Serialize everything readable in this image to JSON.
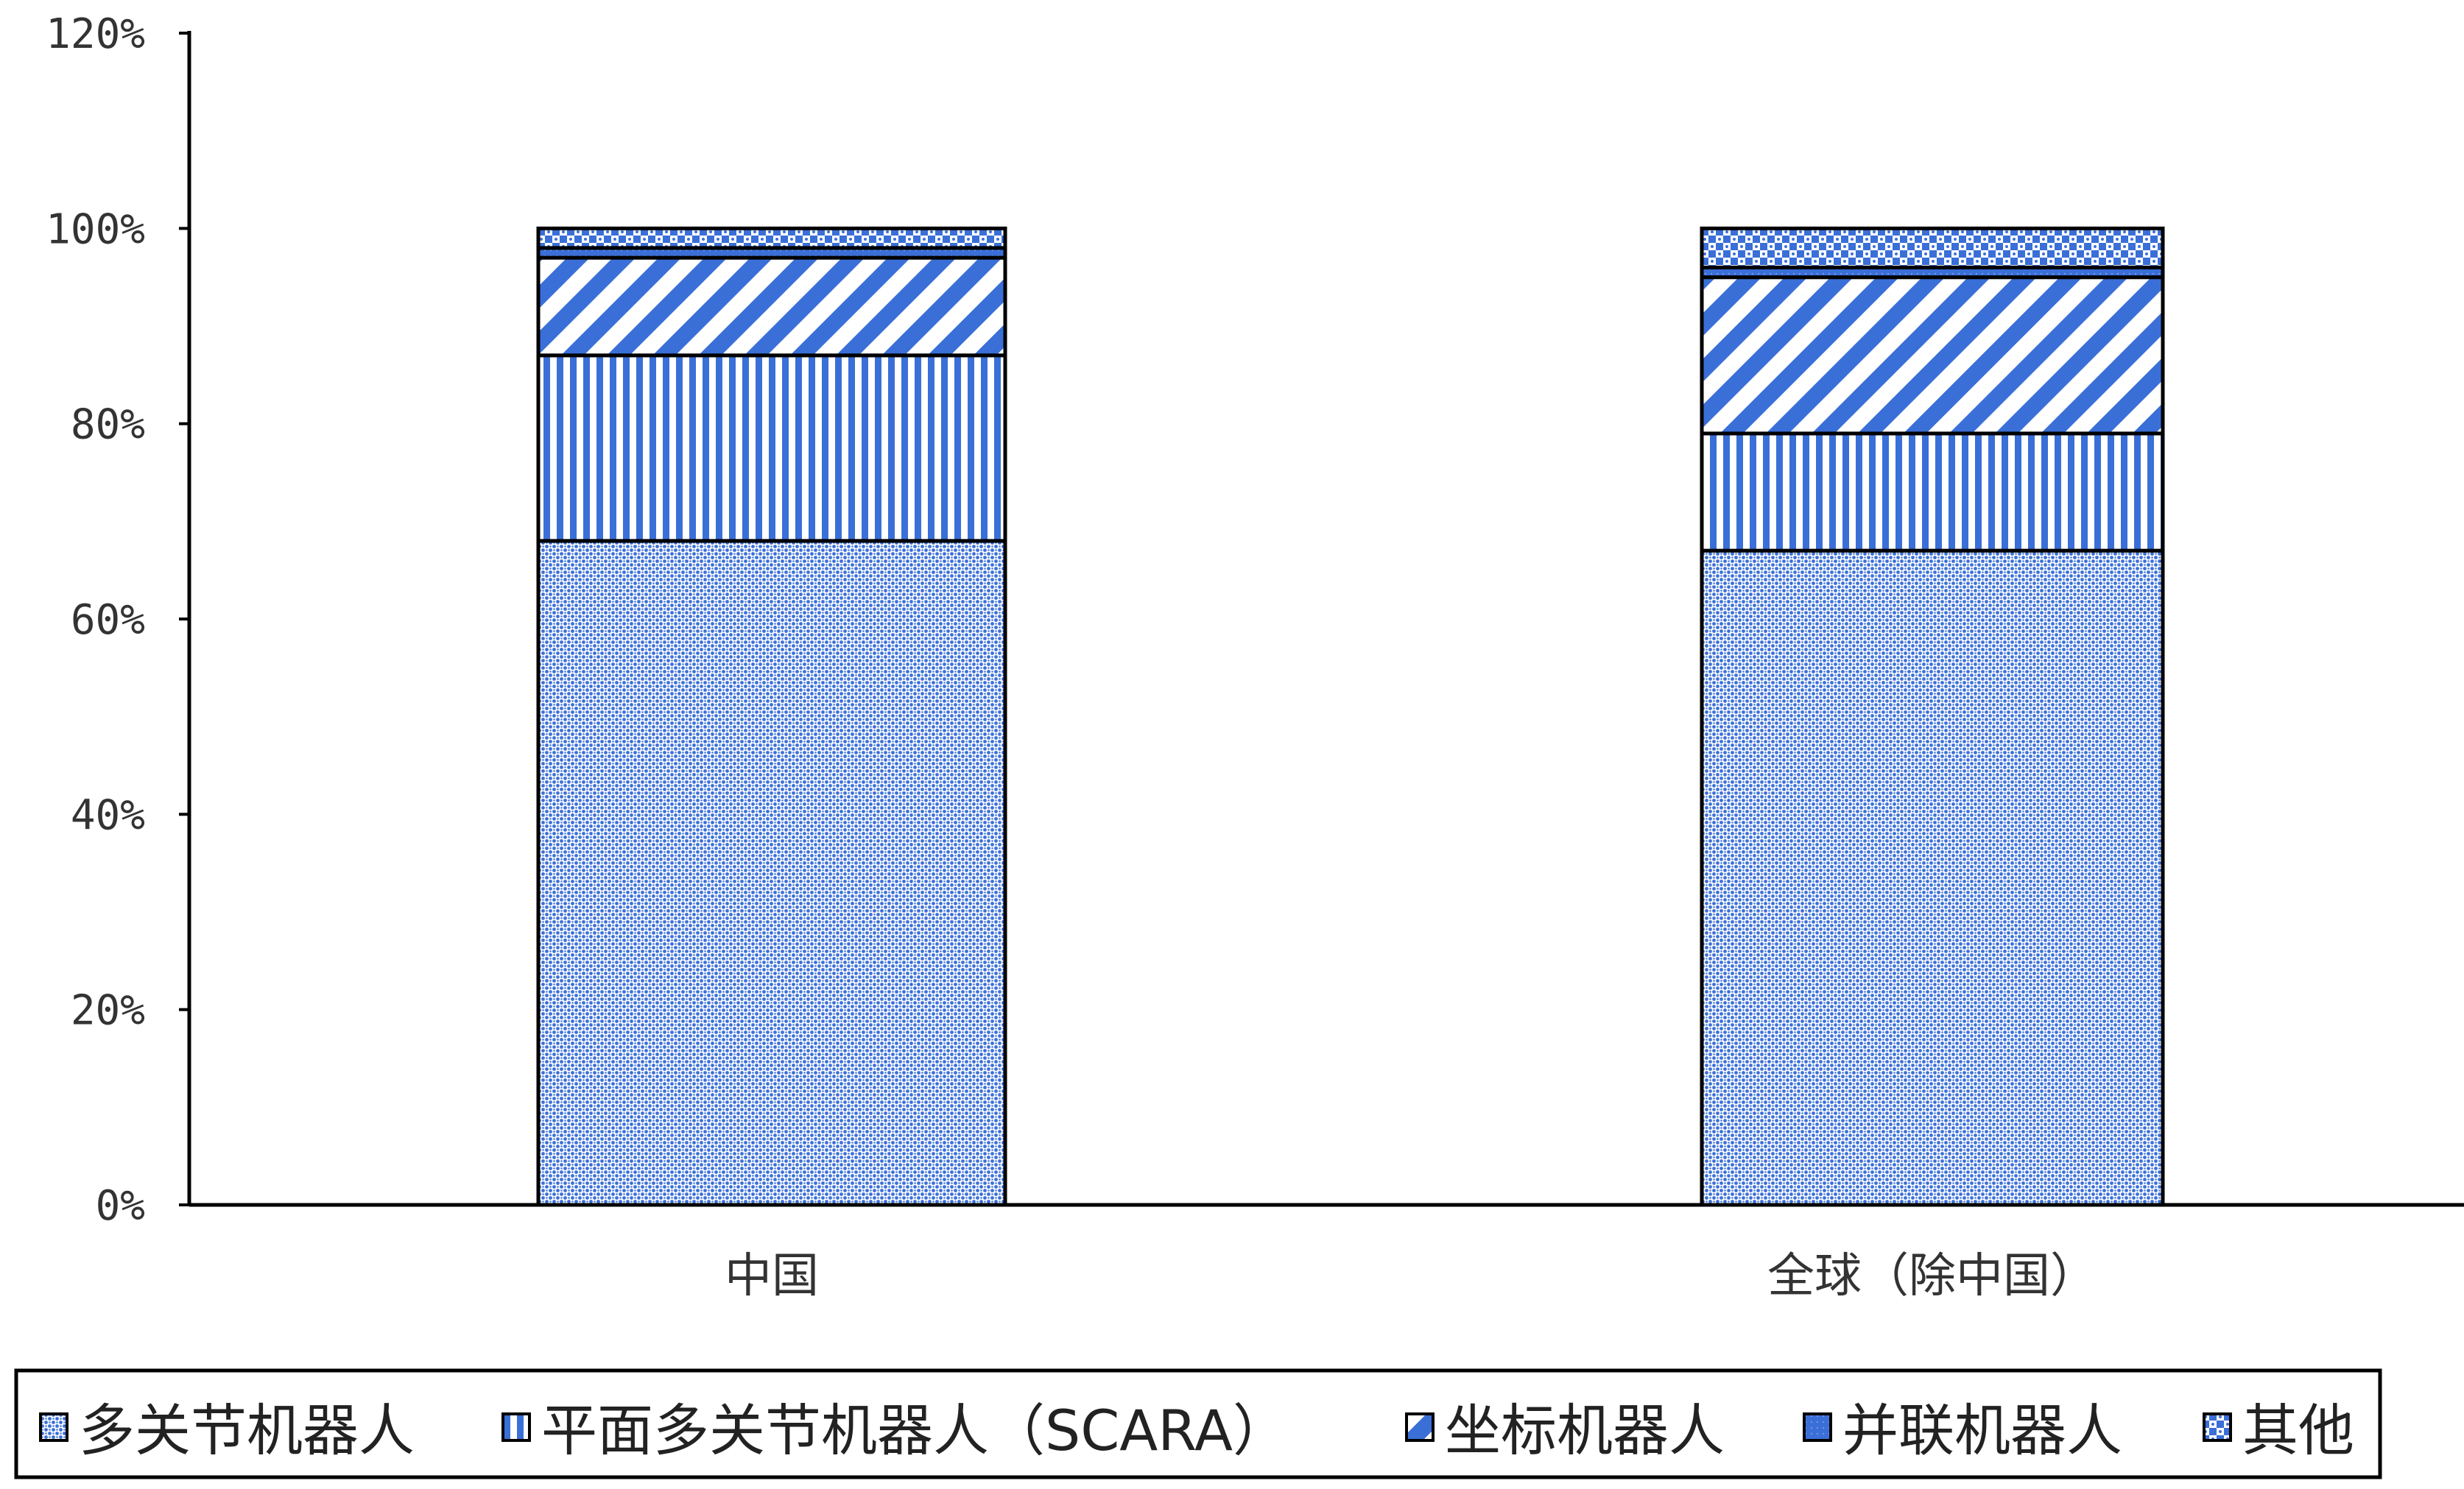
{
  "chart_data": {
    "type": "bar",
    "stacked": true,
    "title": "",
    "xlabel": "",
    "ylabel": "",
    "ylim": [
      0,
      120
    ],
    "yticks": [
      "0%",
      "20%",
      "40%",
      "60%",
      "80%",
      "100%",
      "120%"
    ],
    "grid": false,
    "legend_position": "bottom",
    "categories": [
      "中国",
      "全球（除中国）"
    ],
    "series": [
      {
        "name": "多关节机器人",
        "values": [
          68,
          67
        ],
        "pattern": "dots",
        "color": "#3a6fd8"
      },
      {
        "name": "平面多关节机器人（SCARA）",
        "values": [
          19,
          12
        ],
        "pattern": "vertical",
        "color": "#3a6fd8"
      },
      {
        "name": "坐标机器人",
        "values": [
          10,
          16
        ],
        "pattern": "diagonal",
        "color": "#3a6fd8"
      },
      {
        "name": "并联机器人",
        "values": [
          1,
          1
        ],
        "pattern": "dense",
        "color": "#3a6fd8"
      },
      {
        "name": "其他",
        "values": [
          2,
          4
        ],
        "pattern": "checker",
        "color": "#3a6fd8"
      }
    ]
  }
}
